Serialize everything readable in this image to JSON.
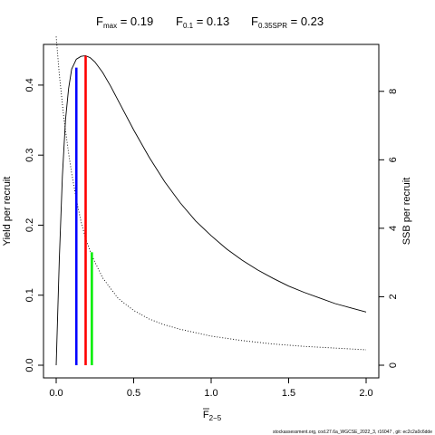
{
  "chart_data": {
    "type": "line",
    "title": {
      "fmax": {
        "label": "F",
        "sub": "max",
        "value": "0.19"
      },
      "f01": {
        "label": "F",
        "sub": "0.1",
        "value": "0.13"
      },
      "f35": {
        "label": "F",
        "sub": "0.35SPR",
        "value": "0.23"
      }
    },
    "xlabel": {
      "label": "F",
      "sub": "2−5"
    },
    "ylabel_left": "Yield per recruit",
    "ylabel_right": "SSB per recruit",
    "xlim": [
      0,
      2.0
    ],
    "ylim_left": [
      0,
      0.44
    ],
    "ylim_right": [
      0,
      9.0
    ],
    "x_ticks": [
      {
        "value": 0,
        "label": "0.0"
      },
      {
        "value": 0.5,
        "label": "0.5"
      },
      {
        "value": 1.0,
        "label": "1.0"
      },
      {
        "value": 1.5,
        "label": "1.5"
      },
      {
        "value": 2.0,
        "label": "2.0"
      }
    ],
    "y_ticks_left": [
      {
        "value": 0.0,
        "label": "0.0"
      },
      {
        "value": 0.1,
        "label": "0.1"
      },
      {
        "value": 0.2,
        "label": "0.2"
      },
      {
        "value": 0.3,
        "label": "0.3"
      },
      {
        "value": 0.4,
        "label": "0.4"
      }
    ],
    "y_ticks_right": [
      {
        "value": 0,
        "label": "0"
      },
      {
        "value": 2,
        "label": "2"
      },
      {
        "value": 4,
        "label": "4"
      },
      {
        "value": 6,
        "label": "6"
      },
      {
        "value": 8,
        "label": "8"
      }
    ],
    "series": [
      {
        "style": "solid",
        "axis": "left",
        "x": [
          0,
          0.02,
          0.04,
          0.06,
          0.08,
          0.1,
          0.13,
          0.16,
          0.19,
          0.22,
          0.25,
          0.3,
          0.35,
          0.4,
          0.5,
          0.6,
          0.7,
          0.8,
          0.9,
          1.0,
          1.1,
          1.2,
          1.3,
          1.4,
          1.5,
          1.6,
          1.7,
          1.8,
          1.9,
          2.0
        ],
        "y": [
          0.0,
          0.15,
          0.27,
          0.35,
          0.395,
          0.423,
          0.437,
          0.441,
          0.442,
          0.439,
          0.433,
          0.418,
          0.399,
          0.378,
          0.336,
          0.297,
          0.262,
          0.232,
          0.206,
          0.185,
          0.166,
          0.15,
          0.136,
          0.124,
          0.113,
          0.104,
          0.096,
          0.088,
          0.082,
          0.076
        ]
      },
      {
        "style": "dotted",
        "axis": "right",
        "x": [
          0,
          0.02,
          0.05,
          0.08,
          0.1,
          0.13,
          0.16,
          0.19,
          0.23,
          0.3,
          0.4,
          0.5,
          0.6,
          0.7,
          0.8,
          1.0,
          1.2,
          1.4,
          1.6,
          1.8,
          2.0
        ],
        "y": [
          9.6,
          8.5,
          7.2,
          6.2,
          5.6,
          4.85,
          4.2,
          3.7,
          3.2,
          2.55,
          1.95,
          1.6,
          1.35,
          1.18,
          1.05,
          0.85,
          0.72,
          0.62,
          0.55,
          0.5,
          0.45
        ]
      }
    ],
    "reference_lines": [
      {
        "name": "F0.1",
        "x": 0.13,
        "y_top": 0.425,
        "axis": "left",
        "color": "#0000ff"
      },
      {
        "name": "Fmax",
        "x": 0.19,
        "y_top": 0.442,
        "axis": "left",
        "color": "#ff0000"
      },
      {
        "name": "F0.35SPR",
        "x": 0.23,
        "y_top": 3.3,
        "axis": "right",
        "color": "#00ee00"
      }
    ],
    "grid": false,
    "legend": "none"
  },
  "footer": "stockassessment.org, cod.27.6a_WGCSE_2022_3, r16047 , git: ec2c2a0c6dde"
}
